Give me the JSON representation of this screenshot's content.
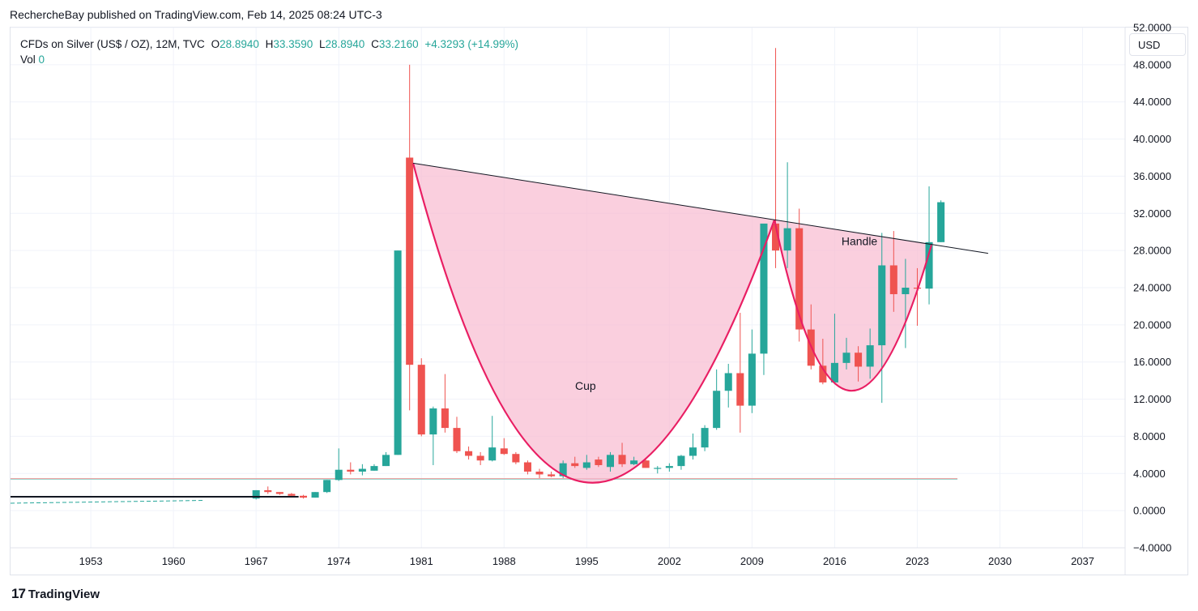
{
  "header": {
    "published_line": "RechercheBay published on TradingView.com, Feb 14, 2025 08:24 UTC-3"
  },
  "legend": {
    "symbol": "CFDs on Silver (US$ / OZ), 12M, TVC",
    "open_label": "O",
    "open": "28.8940",
    "high_label": "H",
    "high": "33.3590",
    "low_label": "L",
    "low": "28.8940",
    "close_label": "C",
    "close": "33.2160",
    "change": "+4.3293 (+14.99%)",
    "vol_label": "Vol",
    "vol": "0"
  },
  "currency_button": "USD",
  "footer": {
    "logo_glyph": "17",
    "brand": "TradingView"
  },
  "chart_data": {
    "type": "candlestick",
    "title": "CFDs on Silver (US$ / OZ), 12M, TVC",
    "y_axis": {
      "ticks": [
        "52.0000",
        "48.0000",
        "44.0000",
        "40.0000",
        "36.0000",
        "32.0000",
        "28.0000",
        "24.0000",
        "20.0000",
        "16.0000",
        "12.0000",
        "8.0000",
        "4.0000",
        "0.0000",
        "−4.0000"
      ],
      "ylim": [
        -4,
        52
      ]
    },
    "x_axis": {
      "ticks": [
        "1953",
        "1960",
        "1967",
        "1974",
        "1981",
        "1988",
        "1995",
        "2002",
        "2009",
        "2016",
        "2023",
        "2030",
        "2037"
      ],
      "xlim": [
        1946.2,
        2040.6
      ]
    },
    "grid": true,
    "colors": {
      "up": "#26a69a",
      "down": "#ef5350",
      "cup": "#e91e63",
      "fill": "#f8bbd0",
      "trend": "#131722"
    },
    "candles": [
      {
        "year": 1967,
        "o": 1.3,
        "h": 2.2,
        "l": 1.2,
        "c": 2.2
      },
      {
        "year": 1968,
        "o": 2.2,
        "h": 2.6,
        "l": 1.8,
        "c": 2.0
      },
      {
        "year": 1969,
        "o": 2.0,
        "h": 2.0,
        "l": 1.7,
        "c": 1.8
      },
      {
        "year": 1970,
        "o": 1.8,
        "h": 1.9,
        "l": 1.6,
        "c": 1.6
      },
      {
        "year": 1971,
        "o": 1.6,
        "h": 1.7,
        "l": 1.3,
        "c": 1.4
      },
      {
        "year": 1972,
        "o": 1.4,
        "h": 2.0,
        "l": 1.4,
        "c": 2.0
      },
      {
        "year": 1973,
        "o": 2.0,
        "h": 3.3,
        "l": 1.9,
        "c": 3.3
      },
      {
        "year": 1974,
        "o": 3.3,
        "h": 6.7,
        "l": 3.2,
        "c": 4.4
      },
      {
        "year": 1975,
        "o": 4.4,
        "h": 5.2,
        "l": 3.9,
        "c": 4.2
      },
      {
        "year": 1976,
        "o": 4.2,
        "h": 5.0,
        "l": 3.8,
        "c": 4.5
      },
      {
        "year": 1977,
        "o": 4.3,
        "h": 5.0,
        "l": 4.3,
        "c": 4.8
      },
      {
        "year": 1978,
        "o": 4.8,
        "h": 6.3,
        "l": 4.8,
        "c": 6.0
      },
      {
        "year": 1979,
        "o": 6.0,
        "h": 28.0,
        "l": 6.0,
        "c": 28.0
      },
      {
        "year": 1980,
        "o": 38.0,
        "h": 48.0,
        "l": 10.8,
        "c": 15.7
      },
      {
        "year": 1981,
        "o": 15.7,
        "h": 16.4,
        "l": 8.0,
        "c": 8.2
      },
      {
        "year": 1982,
        "o": 8.2,
        "h": 11.2,
        "l": 4.9,
        "c": 11.0
      },
      {
        "year": 1983,
        "o": 11.0,
        "h": 14.7,
        "l": 8.4,
        "c": 8.9
      },
      {
        "year": 1984,
        "o": 8.9,
        "h": 10.1,
        "l": 6.2,
        "c": 6.4
      },
      {
        "year": 1985,
        "o": 6.4,
        "h": 6.9,
        "l": 5.5,
        "c": 5.9
      },
      {
        "year": 1986,
        "o": 5.9,
        "h": 6.3,
        "l": 4.9,
        "c": 5.4
      },
      {
        "year": 1987,
        "o": 5.4,
        "h": 10.2,
        "l": 5.3,
        "c": 6.8
      },
      {
        "year": 1988,
        "o": 6.7,
        "h": 7.8,
        "l": 6.0,
        "c": 6.1
      },
      {
        "year": 1989,
        "o": 6.1,
        "h": 6.3,
        "l": 5.0,
        "c": 5.2
      },
      {
        "year": 1990,
        "o": 5.2,
        "h": 5.4,
        "l": 3.9,
        "c": 4.2
      },
      {
        "year": 1991,
        "o": 4.2,
        "h": 4.5,
        "l": 3.5,
        "c": 3.9
      },
      {
        "year": 1992,
        "o": 3.9,
        "h": 4.2,
        "l": 3.6,
        "c": 3.7
      },
      {
        "year": 1993,
        "o": 3.7,
        "h": 5.4,
        "l": 3.5,
        "c": 5.1
      },
      {
        "year": 1994,
        "o": 5.1,
        "h": 5.8,
        "l": 4.6,
        "c": 4.8
      },
      {
        "year": 1995,
        "o": 4.6,
        "h": 6.0,
        "l": 4.4,
        "c": 5.2
      },
      {
        "year": 1996,
        "o": 5.5,
        "h": 5.8,
        "l": 4.7,
        "c": 4.9
      },
      {
        "year": 1997,
        "o": 4.7,
        "h": 6.3,
        "l": 4.2,
        "c": 6.0
      },
      {
        "year": 1998,
        "o": 6.0,
        "h": 7.3,
        "l": 4.7,
        "c": 5.0
      },
      {
        "year": 1999,
        "o": 5.0,
        "h": 5.8,
        "l": 4.9,
        "c": 5.4
      },
      {
        "year": 2000,
        "o": 5.4,
        "h": 5.6,
        "l": 4.6,
        "c": 4.6
      },
      {
        "year": 2001,
        "o": 4.6,
        "h": 4.8,
        "l": 4.0,
        "c": 4.6
      },
      {
        "year": 2002,
        "o": 4.6,
        "h": 5.1,
        "l": 4.2,
        "c": 4.8
      },
      {
        "year": 2003,
        "o": 4.8,
        "h": 6.0,
        "l": 4.4,
        "c": 5.9
      },
      {
        "year": 2004,
        "o": 5.9,
        "h": 8.3,
        "l": 5.5,
        "c": 6.8
      },
      {
        "year": 2005,
        "o": 6.8,
        "h": 9.2,
        "l": 6.4,
        "c": 8.9
      },
      {
        "year": 2006,
        "o": 8.9,
        "h": 15.2,
        "l": 8.7,
        "c": 12.9
      },
      {
        "year": 2007,
        "o": 12.9,
        "h": 15.8,
        "l": 11.1,
        "c": 14.8
      },
      {
        "year": 2008,
        "o": 14.8,
        "h": 21.3,
        "l": 8.4,
        "c": 11.3
      },
      {
        "year": 2009,
        "o": 11.3,
        "h": 19.5,
        "l": 10.5,
        "c": 16.9
      },
      {
        "year": 2010,
        "o": 16.9,
        "h": 30.8,
        "l": 14.6,
        "c": 30.9
      },
      {
        "year": 2011,
        "o": 30.9,
        "h": 49.8,
        "l": 26.1,
        "c": 28.0
      },
      {
        "year": 2012,
        "o": 28.0,
        "h": 37.5,
        "l": 26.1,
        "c": 30.4
      },
      {
        "year": 2013,
        "o": 30.4,
        "h": 32.5,
        "l": 18.2,
        "c": 19.5
      },
      {
        "year": 2014,
        "o": 19.5,
        "h": 22.2,
        "l": 15.2,
        "c": 15.6
      },
      {
        "year": 2015,
        "o": 15.6,
        "h": 18.5,
        "l": 13.6,
        "c": 13.8
      },
      {
        "year": 2016,
        "o": 13.8,
        "h": 21.2,
        "l": 13.6,
        "c": 15.9
      },
      {
        "year": 2017,
        "o": 15.9,
        "h": 18.6,
        "l": 15.2,
        "c": 17.0
      },
      {
        "year": 2018,
        "o": 17.0,
        "h": 17.7,
        "l": 13.9,
        "c": 15.5
      },
      {
        "year": 2019,
        "o": 15.5,
        "h": 19.6,
        "l": 14.2,
        "c": 17.8
      },
      {
        "year": 2020,
        "o": 17.8,
        "h": 29.9,
        "l": 11.6,
        "c": 26.4
      },
      {
        "year": 2021,
        "o": 26.4,
        "h": 30.1,
        "l": 21.4,
        "c": 23.3
      },
      {
        "year": 2022,
        "o": 23.3,
        "h": 27.1,
        "l": 17.5,
        "c": 24.0
      },
      {
        "year": 2023,
        "o": 24.0,
        "h": 26.1,
        "l": 19.9,
        "c": 23.9
      },
      {
        "year": 2024,
        "o": 23.9,
        "h": 34.9,
        "l": 22.2,
        "c": 28.9
      },
      {
        "year": 2025,
        "o": 28.9,
        "h": 33.4,
        "l": 28.9,
        "c": 33.2
      }
    ],
    "trendline": {
      "from": {
        "year": 1980.3,
        "price": 37.4
      },
      "to": {
        "year": 2029,
        "price": 27.7
      }
    },
    "baseline": {
      "from": {
        "year": 1946.2,
        "price": 1.5
      },
      "to": {
        "year": 1970.6,
        "price": 1.5
      }
    },
    "dashed_line": {
      "from": {
        "year": 1946.2,
        "price": 0.8
      },
      "to": {
        "year": 1962.6,
        "price": 1.1
      }
    },
    "level_line": {
      "price": 3.45,
      "to_year": 2026.4
    },
    "cup": {
      "start": {
        "year": 1980.3,
        "price": 37.4
      },
      "bottom": {
        "year": 1993.9,
        "price": 3.8
      },
      "end": {
        "year": 2010.9,
        "price": 31.3
      }
    },
    "handle": {
      "start": {
        "year": 2010.9,
        "price": 31.3
      },
      "bottom": {
        "year": 2016.8,
        "price": 13.3
      },
      "end": {
        "year": 2024.2,
        "price": 28.6
      }
    },
    "annotations": [
      {
        "text": "Cup",
        "year": 1994.9,
        "price": 13.0
      },
      {
        "text": "Handle",
        "year": 2018.1,
        "price": 28.6
      }
    ]
  }
}
